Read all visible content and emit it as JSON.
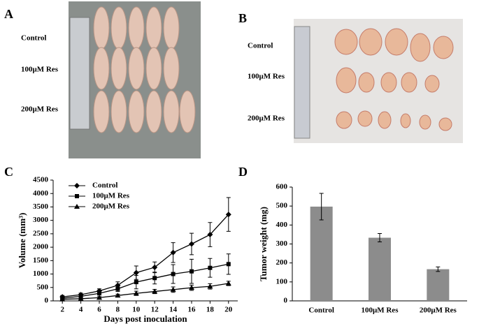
{
  "photos": [
    {
      "panel": "A",
      "labels": [
        "Control",
        "100μM Res",
        "200μM Res"
      ]
    },
    {
      "panel": "B",
      "labels": [
        "Control",
        "100μM Res",
        "200μM Res"
      ]
    }
  ],
  "chart_data": [
    {
      "type": "line",
      "panel": "C",
      "x_label": "Days post inoculation",
      "y_label": "Volume (mm³)",
      "x": [
        2,
        4,
        6,
        8,
        10,
        12,
        14,
        16,
        18,
        20
      ],
      "xlim": [
        1,
        21
      ],
      "xticks": [
        2,
        4,
        6,
        8,
        10,
        12,
        14,
        16,
        18,
        20
      ],
      "ylim": [
        0,
        4500
      ],
      "yticks": [
        0,
        500,
        1000,
        1500,
        2000,
        2500,
        3000,
        3500,
        4000,
        4500
      ],
      "legend": "top-left",
      "series": [
        {
          "name": "Control",
          "color": "#000000",
          "marker": "diamond",
          "values": [
            150,
            230,
            370,
            580,
            1050,
            1250,
            1800,
            2120,
            2470,
            3220
          ],
          "errors": [
            50,
            60,
            80,
            130,
            250,
            200,
            370,
            400,
            450,
            630
          ]
        },
        {
          "name": "100μM Res",
          "color": "#000000",
          "marker": "square",
          "values": [
            100,
            170,
            280,
            450,
            700,
            850,
            1000,
            1100,
            1230,
            1370
          ],
          "errors": [
            40,
            50,
            60,
            100,
            250,
            220,
            350,
            450,
            350,
            380
          ]
        },
        {
          "name": "200μM Res",
          "color": "#000000",
          "marker": "triangle",
          "values": [
            60,
            80,
            120,
            200,
            280,
            350,
            420,
            490,
            540,
            650
          ],
          "errors": [
            20,
            30,
            40,
            50,
            80,
            80,
            100,
            100,
            100,
            80
          ]
        }
      ]
    },
    {
      "type": "bar",
      "panel": "D",
      "y_label": "Tumor weight (mg)",
      "categories": [
        "Control",
        "100μM Res",
        "200μM Res"
      ],
      "values": [
        497,
        333,
        167
      ],
      "errors": [
        70,
        22,
        12
      ],
      "color": "#8c8c8c",
      "ylim": [
        0,
        600
      ],
      "yticks": [
        0,
        100,
        200,
        300,
        400,
        500,
        600
      ]
    }
  ]
}
